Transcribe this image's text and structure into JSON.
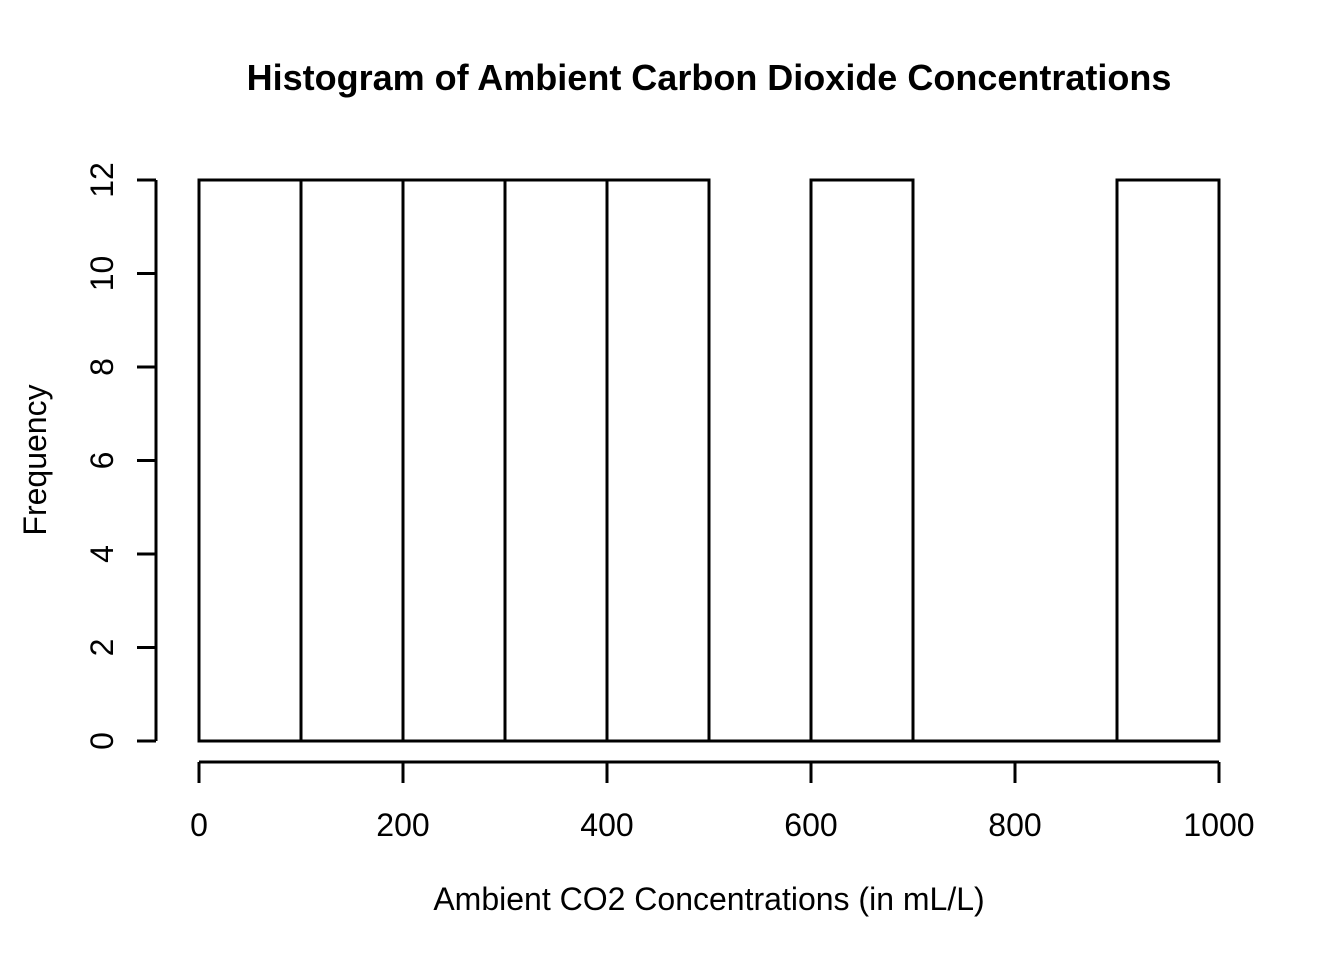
{
  "chart_data": {
    "type": "bar",
    "variant": "histogram",
    "title": "Histogram of Ambient Carbon Dioxide Concentrations",
    "xlabel": "Ambient CO2 Concentrations (in mL/L)",
    "ylabel": "Frequency",
    "bin_breaks": [
      0,
      100,
      200,
      300,
      400,
      500,
      600,
      700,
      800,
      900,
      1000
    ],
    "counts": [
      12,
      12,
      12,
      12,
      12,
      0,
      12,
      0,
      0,
      12
    ],
    "x_ticks": [
      0,
      200,
      400,
      600,
      800,
      1000
    ],
    "y_ticks": [
      0,
      2,
      4,
      6,
      8,
      10,
      12
    ],
    "xlim": [
      0,
      1000
    ],
    "ylim": [
      0,
      12
    ],
    "grid": false,
    "legend": false,
    "bar_fill": "#ffffff",
    "line_color": "#000000",
    "background": "#ffffff"
  }
}
